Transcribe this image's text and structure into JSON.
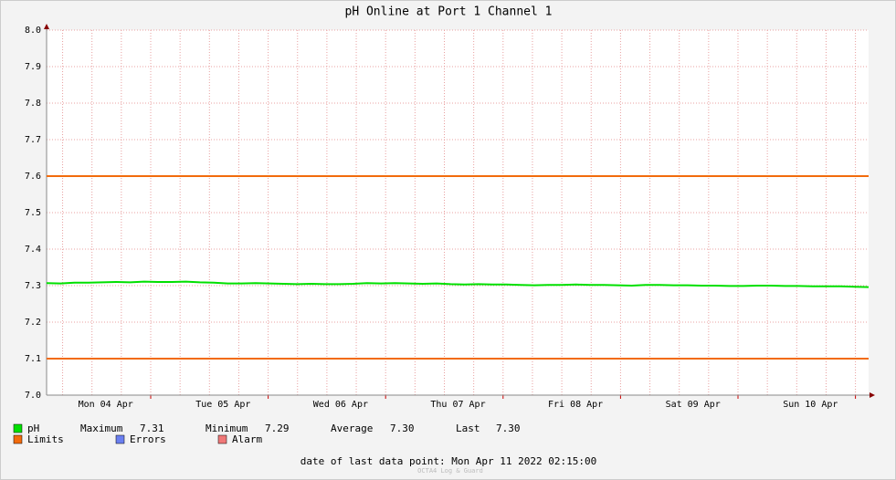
{
  "chart_data": {
    "type": "line",
    "title": "pH Online at Port 1 Channel 1",
    "ylim": [
      7.0,
      8.0
    ],
    "yticks": [
      {
        "value": 7.0,
        "label": "7.0"
      },
      7.1,
      7.2,
      7.3,
      7.4,
      7.5,
      7.6,
      7.7,
      7.8,
      7.9,
      {
        "value": 8.0,
        "label": "8.0"
      }
    ],
    "xlabels": [
      "Mon 04 Apr",
      "Tue 05 Apr",
      "Wed 06 Apr",
      "Thu 07 Apr",
      "Fri 08 Apr",
      "Sat 09 Apr",
      "Sun 10 Apr"
    ],
    "grid": true,
    "series": [
      {
        "name": "pH",
        "color": "#00e000",
        "values": [
          7.307,
          7.306,
          7.308,
          7.308,
          7.309,
          7.31,
          7.309,
          7.311,
          7.31,
          7.31,
          7.311,
          7.309,
          7.308,
          7.306,
          7.306,
          7.307,
          7.306,
          7.305,
          7.304,
          7.305,
          7.304,
          7.304,
          7.305,
          7.307,
          7.306,
          7.307,
          7.306,
          7.305,
          7.306,
          7.304,
          7.303,
          7.304,
          7.303,
          7.303,
          7.302,
          7.301,
          7.302,
          7.302,
          7.303,
          7.302,
          7.302,
          7.301,
          7.3,
          7.302,
          7.302,
          7.301,
          7.301,
          7.3,
          7.3,
          7.299,
          7.299,
          7.3,
          7.3,
          7.299,
          7.299,
          7.298,
          7.298,
          7.298,
          7.297,
          7.296
        ]
      },
      {
        "name": "Limits",
        "color": "#f26b0c",
        "values": [
          7.1,
          7.6
        ]
      },
      {
        "name": "Errors",
        "color": "#6a7ff0"
      },
      {
        "name": "Alarm",
        "color": "#f07878"
      }
    ],
    "stats": [
      {
        "name": "Maximum",
        "label": "7.31"
      },
      {
        "name": "Minimum",
        "label": "7.29"
      },
      {
        "name": "Average",
        "label": "7.30"
      },
      {
        "name": "Last",
        "label": "7.30"
      }
    ],
    "footer": "date of last data point:  Mon Apr 11 2022 02:15:00",
    "watermark": "OCTA4 Log & Guard"
  }
}
